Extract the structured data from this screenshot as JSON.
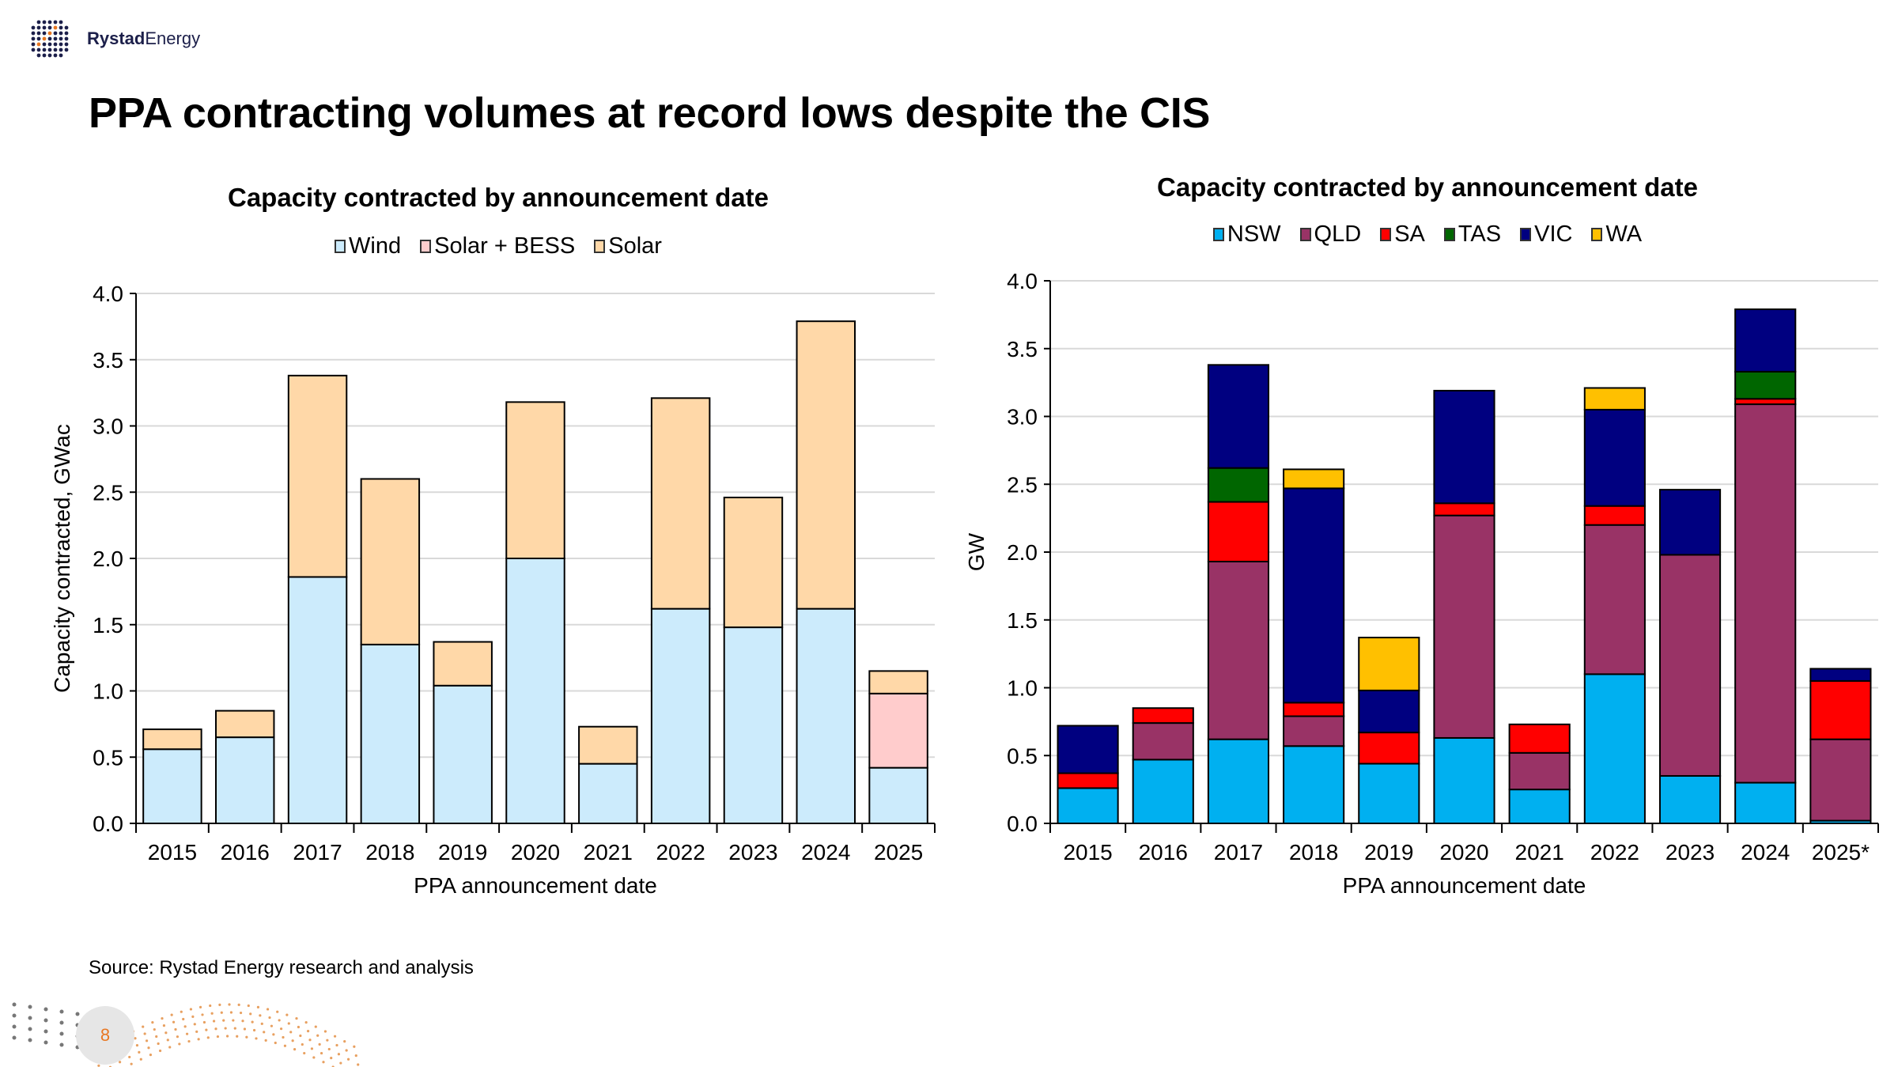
{
  "brand": {
    "name_bold": "Rystad",
    "name_regular": "Energy"
  },
  "page": {
    "title": "PPA contracting volumes at record lows despite the CIS",
    "source": "Source: Rystad Energy research and analysis",
    "page_number": "8"
  },
  "chart_data": [
    {
      "type": "bar",
      "stacked": true,
      "title": "Capacity contracted by announcement date",
      "xlabel": "PPA announcement date",
      "ylabel": "Capacity contracted,    GWac",
      "ylim": [
        0,
        4.0
      ],
      "yticks": [
        "0.0",
        "0.5",
        "1.0",
        "1.5",
        "2.0",
        "2.5",
        "3.0",
        "3.5",
        "4.0"
      ],
      "grid": true,
      "legend_position": "top",
      "categories": [
        "2015",
        "2016",
        "2017",
        "2018",
        "2019",
        "2020",
        "2021",
        "2022",
        "2023",
        "2024",
        "2025"
      ],
      "series": [
        {
          "name": "Wind",
          "color": "#CCEBFC",
          "values": [
            0.56,
            0.65,
            1.86,
            1.35,
            1.04,
            2.0,
            0.45,
            1.62,
            1.48,
            1.62,
            0.42
          ]
        },
        {
          "name": "Solar + BESS",
          "color": "#FFCCCC",
          "values": [
            0,
            0,
            0,
            0,
            0,
            0,
            0,
            0,
            0,
            0,
            0.56
          ]
        },
        {
          "name": "Solar",
          "color": "#FFD8A8",
          "values": [
            0.15,
            0.2,
            1.52,
            1.25,
            0.33,
            1.18,
            0.28,
            1.59,
            0.98,
            2.17,
            0.17
          ]
        }
      ]
    },
    {
      "type": "bar",
      "stacked": true,
      "title": "Capacity contracted by announcement date",
      "xlabel": "PPA announcement date",
      "ylabel": "GW",
      "ylim": [
        0,
        4.0
      ],
      "yticks": [
        "0.0",
        "0.5",
        "1.0",
        "1.5",
        "2.0",
        "2.5",
        "3.0",
        "3.5",
        "4.0"
      ],
      "grid": true,
      "legend_position": "top",
      "categories": [
        "2015",
        "2016",
        "2017",
        "2018",
        "2019",
        "2020",
        "2021",
        "2022",
        "2023",
        "2024",
        "2025*"
      ],
      "series": [
        {
          "name": "NSW",
          "color": "#00B0F0",
          "values": [
            0.26,
            0.47,
            0.62,
            0.57,
            0.44,
            0.63,
            0.25,
            1.1,
            0.35,
            0.3,
            0.02
          ]
        },
        {
          "name": "QLD",
          "color": "#993366",
          "values": [
            0,
            0.27,
            1.31,
            0.22,
            0,
            1.64,
            0.27,
            1.1,
            1.63,
            2.79,
            0.6
          ]
        },
        {
          "name": "SA",
          "color": "#FF0000",
          "values": [
            0.11,
            0.11,
            0.44,
            0.1,
            0.23,
            0.09,
            0.21,
            0.14,
            0,
            0.04,
            0.43
          ]
        },
        {
          "name": "TAS",
          "color": "#006600",
          "values": [
            0,
            0,
            0.25,
            0,
            0,
            0,
            0,
            0,
            0,
            0.2,
            0
          ]
        },
        {
          "name": "VIC",
          "color": "#000080",
          "values": [
            0.35,
            0,
            0.76,
            1.58,
            0.31,
            0.83,
            0,
            0.71,
            0.48,
            0.46,
            0.09
          ]
        },
        {
          "name": "WA",
          "color": "#FFC000",
          "values": [
            0,
            0,
            0,
            0.14,
            0.39,
            0,
            0,
            0.16,
            0,
            0,
            0
          ]
        }
      ]
    }
  ]
}
